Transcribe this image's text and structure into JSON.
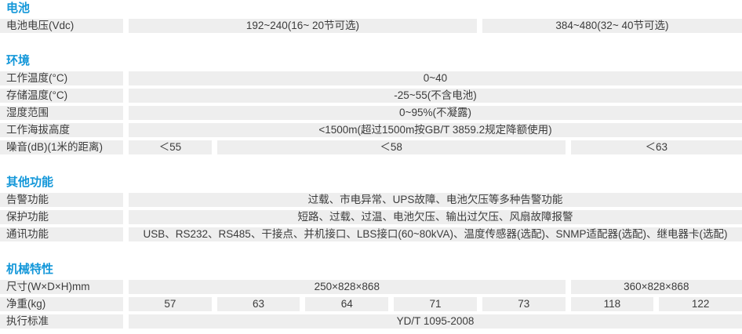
{
  "colors": {
    "accent": "#1397d9",
    "cell_bg": "#eeeeee",
    "text": "#3c3c3c"
  },
  "table": {
    "value_columns": 7
  },
  "sections": [
    {
      "title": "电池",
      "rows": [
        {
          "label": "电池电压(Vdc)",
          "cells": [
            {
              "text": "192~240(16~ 20节可选)",
              "span": 4
            },
            {
              "text": "384~480(32~ 40节可选)",
              "span": 3
            }
          ]
        }
      ]
    },
    {
      "title": "环境",
      "rows": [
        {
          "label": "工作温度(°C)",
          "cells": [
            {
              "text": "0~40",
              "span": 7
            }
          ]
        },
        {
          "label": "存储温度(°C)",
          "cells": [
            {
              "text": "-25~55(不含电池)",
              "span": 7
            }
          ]
        },
        {
          "label": "湿度范围",
          "cells": [
            {
              "text": "0~95%(不凝露)",
              "span": 7
            }
          ]
        },
        {
          "label": "工作海拔高度",
          "cells": [
            {
              "text": "<1500m(超过1500m按GB/T 3859.2规定降额使用)",
              "span": 7
            }
          ]
        },
        {
          "label": "噪音(dB)(1米的距离)",
          "cells": [
            {
              "text": "＜55",
              "span": 1
            },
            {
              "text": "＜58",
              "span": 4
            },
            {
              "text": "＜63",
              "span": 2
            }
          ]
        }
      ]
    },
    {
      "title": "其他功能",
      "rows": [
        {
          "label": "告警功能",
          "cells": [
            {
              "text": "过载、市电异常、UPS故障、电池欠压等多种告警功能",
              "span": 7
            }
          ]
        },
        {
          "label": "保护功能",
          "cells": [
            {
              "text": "短路、过载、过温、电池欠压、输出过欠压、风扇故障报警",
              "span": 7
            }
          ]
        },
        {
          "label": "通讯功能",
          "cells": [
            {
              "text": "USB、RS232、RS485、干接点、并机接口、LBS接口(60~80kVA)、温度传感器(选配)、SNMP适配器(选配)、继电器卡(选配)",
              "span": 7
            }
          ]
        }
      ]
    },
    {
      "title": "机械特性",
      "rows": [
        {
          "label": "尺寸(W×D×H)mm",
          "cells": [
            {
              "text": "250×828×868",
              "span": 5
            },
            {
              "text": "360×828×868",
              "span": 2
            }
          ]
        },
        {
          "label": "净重(kg)",
          "cells": [
            {
              "text": "57",
              "span": 1
            },
            {
              "text": "63",
              "span": 1
            },
            {
              "text": "64",
              "span": 1
            },
            {
              "text": "71",
              "span": 1
            },
            {
              "text": "73",
              "span": 1
            },
            {
              "text": "118",
              "span": 1
            },
            {
              "text": "122",
              "span": 1
            }
          ]
        },
        {
          "label": "执行标准",
          "cells": [
            {
              "text": "YD/T 1095-2008",
              "span": 7
            }
          ]
        }
      ]
    }
  ]
}
